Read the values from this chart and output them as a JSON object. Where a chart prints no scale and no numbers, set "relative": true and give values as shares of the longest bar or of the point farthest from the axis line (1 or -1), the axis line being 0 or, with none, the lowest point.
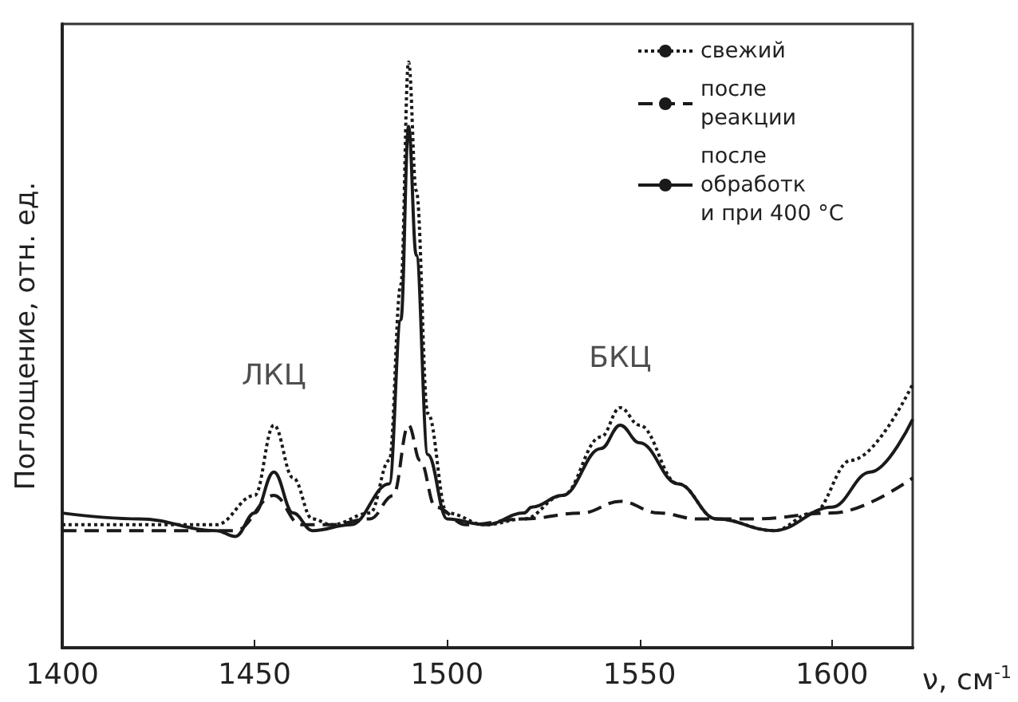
{
  "chart_data": {
    "type": "line",
    "relative": true,
    "xlabel": "ν, см$^{-1}$",
    "ylabel": "Поглощение, отн. ед.",
    "xlim": [
      1400,
      1621
    ],
    "xticks": [
      1400,
      1450,
      1500,
      1550,
      1600
    ],
    "legend": "top right",
    "marker": "none",
    "grid": false,
    "annotations": [
      {
        "text": "ЛКЦ",
        "x": 1455,
        "y": 0.38
      },
      {
        "text": "БКЦ",
        "x": 1545,
        "y": 0.41
      }
    ],
    "series": [
      {
        "name": "свежий",
        "color": "#1a1a1a",
        "line_style": "dotted",
        "x": [
          1400,
          1430,
          1440,
          1450,
          1455,
          1460,
          1465,
          1470,
          1480,
          1485,
          1488,
          1490,
          1492,
          1495,
          1500,
          1510,
          1520,
          1530,
          1540,
          1545,
          1550,
          1560,
          1570,
          1585,
          1595,
          1605,
          1621
        ],
        "values": [
          0.21,
          0.21,
          0.21,
          0.26,
          0.38,
          0.29,
          0.22,
          0.21,
          0.23,
          0.32,
          0.62,
          1,
          0.78,
          0.4,
          0.23,
          0.21,
          0.22,
          0.26,
          0.36,
          0.41,
          0.38,
          0.28,
          0.22,
          0.2,
          0.23,
          0.32,
          0.45
        ]
      },
      {
        "name": "после реакции",
        "color": "#1a1a1a",
        "line_style": "dashed",
        "x": [
          1400,
          1430,
          1445,
          1455,
          1462,
          1470,
          1480,
          1486,
          1490,
          1493,
          1497,
          1505,
          1520,
          1535,
          1545,
          1555,
          1565,
          1580,
          1600,
          1621
        ],
        "values": [
          0.2,
          0.2,
          0.2,
          0.26,
          0.21,
          0.21,
          0.22,
          0.26,
          0.38,
          0.32,
          0.24,
          0.21,
          0.22,
          0.23,
          0.25,
          0.23,
          0.22,
          0.22,
          0.23,
          0.29
        ]
      },
      {
        "name": "после обработки при 400 °C",
        "color": "#1a1a1a",
        "line_style": "solid",
        "x": [
          1400,
          1420,
          1440,
          1445,
          1450,
          1455,
          1460,
          1465,
          1475,
          1485,
          1488,
          1490,
          1492,
          1495,
          1500,
          1510,
          1520,
          1522,
          1530,
          1540,
          1545,
          1550,
          1560,
          1570,
          1585,
          1600,
          1610,
          1621
        ],
        "values": [
          0.23,
          0.22,
          0.2,
          0.19,
          0.23,
          0.3,
          0.23,
          0.2,
          0.21,
          0.28,
          0.56,
          0.89,
          0.67,
          0.33,
          0.22,
          0.21,
          0.23,
          0.24,
          0.26,
          0.34,
          0.38,
          0.35,
          0.28,
          0.22,
          0.2,
          0.24,
          0.3,
          0.39
        ]
      }
    ]
  }
}
